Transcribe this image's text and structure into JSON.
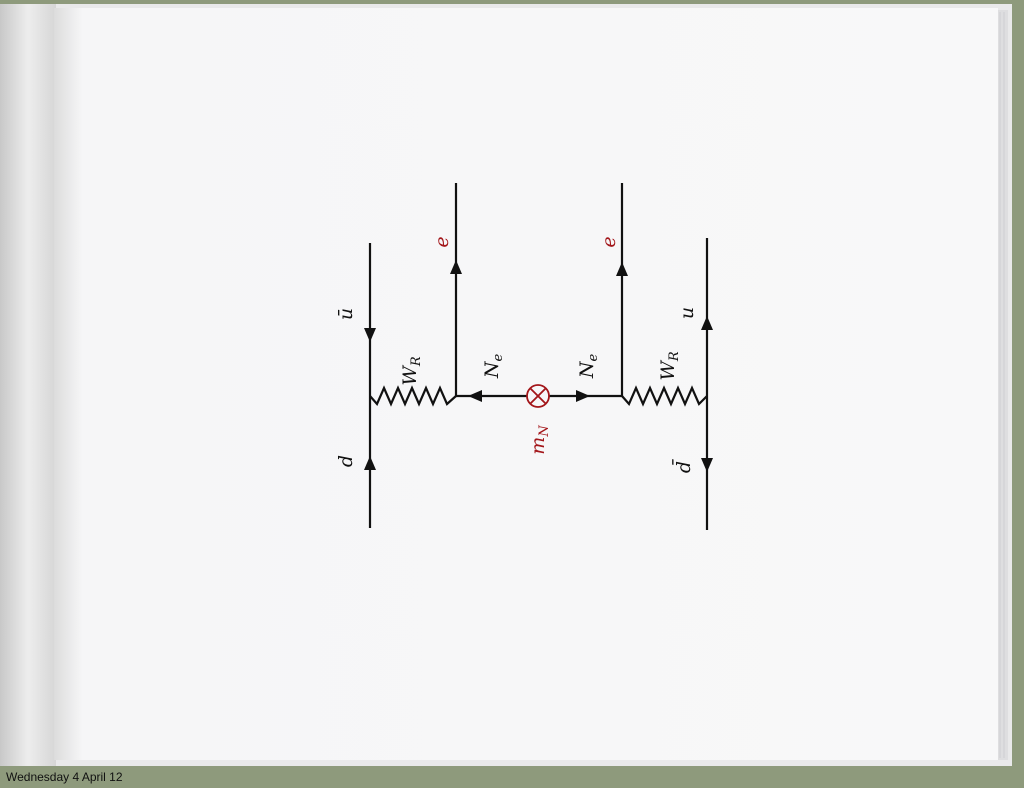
{
  "footer": {
    "date": "Wednesday 4 April 12"
  },
  "diagram": {
    "labels": {
      "d": "d",
      "u_bar": "ū",
      "W_R_left": "W",
      "W_R_left_sub": "R",
      "e_left": "e",
      "N_e_left": "N",
      "N_e_left_sub": "e",
      "m_N": "m",
      "m_N_sub": "N",
      "N_e_right": "N",
      "N_e_right_sub": "e",
      "e_right": "e",
      "W_R_right": "W",
      "W_R_right_sub": "R",
      "u": "u",
      "d_bar": "d̄"
    },
    "colors": {
      "accent": "#a3161a",
      "line": "#111111"
    },
    "icons": {
      "mass_insertion": "circle-cross-icon"
    }
  }
}
